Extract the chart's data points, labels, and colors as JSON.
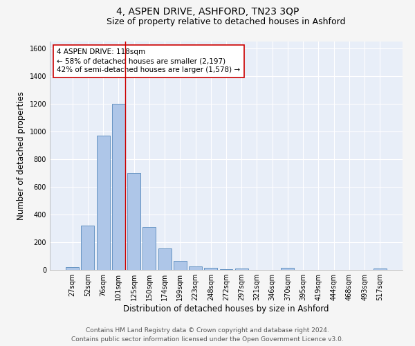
{
  "title": "4, ASPEN DRIVE, ASHFORD, TN23 3QP",
  "subtitle": "Size of property relative to detached houses in Ashford",
  "xlabel": "Distribution of detached houses by size in Ashford",
  "ylabel": "Number of detached properties",
  "categories": [
    "27sqm",
    "52sqm",
    "76sqm",
    "101sqm",
    "125sqm",
    "150sqm",
    "174sqm",
    "199sqm",
    "223sqm",
    "248sqm",
    "272sqm",
    "297sqm",
    "321sqm",
    "346sqm",
    "370sqm",
    "395sqm",
    "419sqm",
    "444sqm",
    "468sqm",
    "493sqm",
    "517sqm"
  ],
  "values": [
    20,
    320,
    970,
    1200,
    700,
    310,
    155,
    65,
    25,
    15,
    5,
    10,
    2,
    2,
    15,
    2,
    2,
    2,
    2,
    2,
    10
  ],
  "bar_color": "#aec6e8",
  "bar_edge_color": "#5588bb",
  "highlight_bar_index": 3,
  "highlight_line_color": "#cc0000",
  "ylim": [
    0,
    1650
  ],
  "yticks": [
    0,
    200,
    400,
    600,
    800,
    1000,
    1200,
    1400,
    1600
  ],
  "annotation_text": "4 ASPEN DRIVE: 118sqm\n← 58% of detached houses are smaller (2,197)\n42% of semi-detached houses are larger (1,578) →",
  "annotation_box_color": "#ffffff",
  "annotation_box_edge": "#cc0000",
  "footer_line1": "Contains HM Land Registry data © Crown copyright and database right 2024.",
  "footer_line2": "Contains public sector information licensed under the Open Government Licence v3.0.",
  "bg_color": "#e8eef8",
  "grid_color": "#ffffff",
  "title_fontsize": 10,
  "subtitle_fontsize": 9,
  "axis_label_fontsize": 8.5,
  "tick_fontsize": 7,
  "annotation_fontsize": 7.5,
  "footer_fontsize": 6.5
}
